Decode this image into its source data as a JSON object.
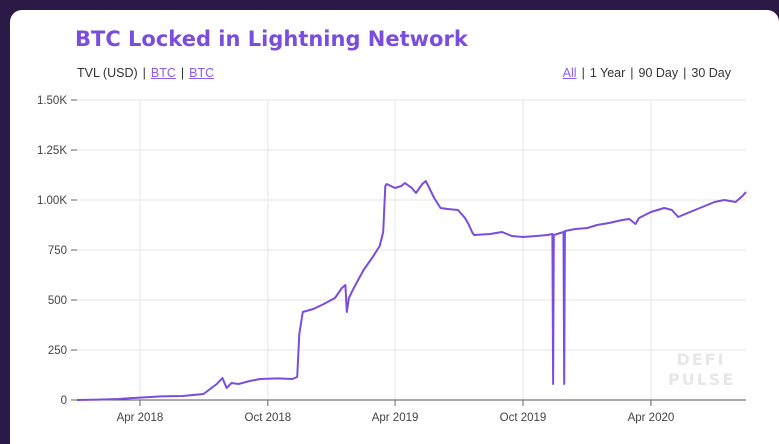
{
  "header": {
    "title": "BTC Locked in Lightning Network",
    "unit_options": [
      {
        "label": "TVL (USD)",
        "active": false
      },
      {
        "label": "BTC",
        "active": true
      },
      {
        "label": "BTC",
        "active": true
      }
    ],
    "range_options": [
      {
        "label": "All",
        "active": true
      },
      {
        "label": "1 Year",
        "active": false
      },
      {
        "label": "90 Day",
        "active": false
      },
      {
        "label": "30 Day",
        "active": false
      }
    ]
  },
  "watermark": {
    "line1": "DEFI",
    "line2": "PULSE"
  },
  "colors": {
    "line": "#7b4ddc",
    "title": "#7b4ddc",
    "background": "#2a1a45",
    "grid": "#e6e6e6"
  },
  "chart_data": {
    "type": "line",
    "title": "BTC Locked in Lightning Network",
    "xlabel": "",
    "ylabel": "",
    "grid": true,
    "ylim": [
      0,
      1500
    ],
    "y_ticks": [
      {
        "value": 0,
        "label": "0"
      },
      {
        "value": 250,
        "label": "250"
      },
      {
        "value": 500,
        "label": "500"
      },
      {
        "value": 750,
        "label": "750"
      },
      {
        "value": 1000,
        "label": "1.00K"
      },
      {
        "value": 1250,
        "label": "1.25K"
      },
      {
        "value": 1500,
        "label": "1.50K"
      }
    ],
    "xlim": [
      "2018-01-01",
      "2020-08-15"
    ],
    "x_ticks": [
      {
        "date": "2018-04-01",
        "label": "Apr 2018"
      },
      {
        "date": "2018-10-01",
        "label": "Oct 2018"
      },
      {
        "date": "2019-04-01",
        "label": "Apr 2019"
      },
      {
        "date": "2019-10-01",
        "label": "Oct 2019"
      },
      {
        "date": "2020-04-01",
        "label": "Apr 2020"
      }
    ],
    "series": [
      {
        "points": [
          [
            "2018-01-01",
            0
          ],
          [
            "2018-02-01",
            2
          ],
          [
            "2018-03-01",
            5
          ],
          [
            "2018-04-01",
            12
          ],
          [
            "2018-05-01",
            18
          ],
          [
            "2018-06-01",
            20
          ],
          [
            "2018-07-01",
            30
          ],
          [
            "2018-07-20",
            80
          ],
          [
            "2018-07-28",
            110
          ],
          [
            "2018-08-03",
            60
          ],
          [
            "2018-08-10",
            85
          ],
          [
            "2018-08-20",
            80
          ],
          [
            "2018-09-05",
            95
          ],
          [
            "2018-09-20",
            105
          ],
          [
            "2018-10-15",
            108
          ],
          [
            "2018-11-05",
            105
          ],
          [
            "2018-11-12",
            115
          ],
          [
            "2018-11-15",
            330
          ],
          [
            "2018-11-20",
            440
          ],
          [
            "2018-12-05",
            455
          ],
          [
            "2018-12-20",
            480
          ],
          [
            "2019-01-05",
            510
          ],
          [
            "2019-01-15",
            560
          ],
          [
            "2019-01-20",
            575
          ],
          [
            "2019-01-22",
            440
          ],
          [
            "2019-01-25",
            510
          ],
          [
            "2019-02-01",
            560
          ],
          [
            "2019-02-15",
            650
          ],
          [
            "2019-03-01",
            720
          ],
          [
            "2019-03-10",
            770
          ],
          [
            "2019-03-15",
            840
          ],
          [
            "2019-03-18",
            1070
          ],
          [
            "2019-03-20",
            1080
          ],
          [
            "2019-04-01",
            1060
          ],
          [
            "2019-04-10",
            1070
          ],
          [
            "2019-04-15",
            1085
          ],
          [
            "2019-04-25",
            1060
          ],
          [
            "2019-05-01",
            1035
          ],
          [
            "2019-05-10",
            1080
          ],
          [
            "2019-05-15",
            1095
          ],
          [
            "2019-05-20",
            1060
          ],
          [
            "2019-05-27",
            1010
          ],
          [
            "2019-06-05",
            960
          ],
          [
            "2019-06-15",
            955
          ],
          [
            "2019-06-30",
            950
          ],
          [
            "2019-07-10",
            910
          ],
          [
            "2019-07-15",
            880
          ],
          [
            "2019-07-20",
            840
          ],
          [
            "2019-07-23",
            825
          ],
          [
            "2019-08-15",
            830
          ],
          [
            "2019-09-01",
            840
          ],
          [
            "2019-09-15",
            820
          ],
          [
            "2019-10-01",
            815
          ],
          [
            "2019-10-20",
            820
          ],
          [
            "2019-11-05",
            825
          ],
          [
            "2019-11-12",
            830
          ],
          [
            "2019-11-13",
            80
          ],
          [
            "2019-11-14",
            825
          ],
          [
            "2019-11-28",
            840
          ],
          [
            "2019-11-29",
            80
          ],
          [
            "2019-11-30",
            845
          ],
          [
            "2019-12-15",
            855
          ],
          [
            "2020-01-01",
            860
          ],
          [
            "2020-01-15",
            875
          ],
          [
            "2020-02-01",
            885
          ],
          [
            "2020-02-20",
            900
          ],
          [
            "2020-03-01",
            905
          ],
          [
            "2020-03-10",
            880
          ],
          [
            "2020-03-15",
            910
          ],
          [
            "2020-04-01",
            940
          ],
          [
            "2020-04-20",
            960
          ],
          [
            "2020-05-01",
            950
          ],
          [
            "2020-05-10",
            915
          ],
          [
            "2020-05-20",
            930
          ],
          [
            "2020-06-10",
            960
          ],
          [
            "2020-07-01",
            990
          ],
          [
            "2020-07-15",
            1000
          ],
          [
            "2020-07-31",
            990
          ],
          [
            "2020-08-10",
            1020
          ],
          [
            "2020-08-15",
            1040
          ]
        ]
      }
    ]
  }
}
